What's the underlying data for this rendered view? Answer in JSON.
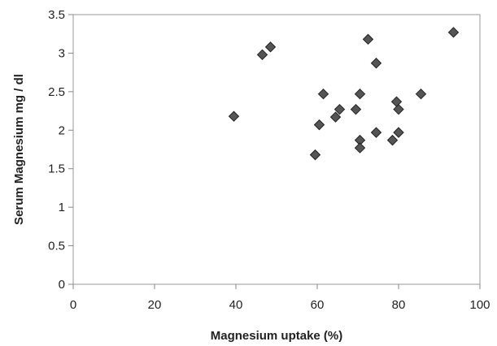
{
  "chart_data": {
    "type": "scatter",
    "title": "",
    "xlabel": "Magnesium uptake (%)",
    "ylabel": "Serum Magnesium mg / dl",
    "xlim": [
      0,
      100
    ],
    "ylim": [
      0,
      3.5
    ],
    "x_ticks": [
      0,
      20,
      40,
      60,
      80,
      100
    ],
    "y_ticks": [
      0,
      0.5,
      1,
      1.5,
      2,
      2.5,
      3,
      3.5
    ],
    "x_tick_labels": [
      "0",
      "20",
      "40",
      "60",
      "80",
      "100"
    ],
    "y_tick_labels": [
      "0",
      "0.5",
      "1",
      "1.5",
      "2",
      "2.5",
      "3",
      "3.5"
    ],
    "grid": false,
    "legend": "none",
    "marker": "diamond",
    "marker_color": "#555555",
    "series": [
      {
        "points": [
          {
            "x": 39.5,
            "y": 2.18
          },
          {
            "x": 46.5,
            "y": 2.98
          },
          {
            "x": 48.5,
            "y": 3.08
          },
          {
            "x": 59.5,
            "y": 1.68
          },
          {
            "x": 60.5,
            "y": 2.07
          },
          {
            "x": 61.5,
            "y": 2.47
          },
          {
            "x": 64.5,
            "y": 2.17
          },
          {
            "x": 65.5,
            "y": 2.27
          },
          {
            "x": 69.5,
            "y": 2.27
          },
          {
            "x": 70.5,
            "y": 2.47
          },
          {
            "x": 70.5,
            "y": 1.87
          },
          {
            "x": 70.5,
            "y": 1.77
          },
          {
            "x": 72.5,
            "y": 3.18
          },
          {
            "x": 74.5,
            "y": 2.87
          },
          {
            "x": 74.5,
            "y": 1.97
          },
          {
            "x": 78.5,
            "y": 1.87
          },
          {
            "x": 79.5,
            "y": 2.37
          },
          {
            "x": 80.0,
            "y": 2.27
          },
          {
            "x": 80.0,
            "y": 1.97
          },
          {
            "x": 85.5,
            "y": 2.47
          },
          {
            "x": 93.5,
            "y": 3.27
          }
        ]
      }
    ]
  }
}
